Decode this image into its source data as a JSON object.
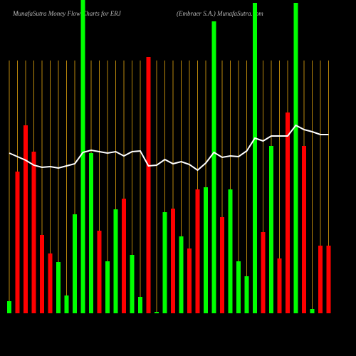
{
  "chart_data": {
    "type": "bar",
    "title": "MunafaSutra  Money Flow  Charts for ERJ",
    "subtitle": "(Embraer S.A.) MunafaSutra.com",
    "categories": [
      null,
      null,
      null,
      null,
      null,
      null,
      null,
      null,
      null,
      null,
      null,
      null,
      null,
      null,
      null,
      null,
      null,
      null,
      null,
      null,
      null,
      null,
      null,
      null,
      null,
      null,
      null,
      null,
      null,
      null,
      null,
      null,
      null,
      null,
      null,
      null,
      null,
      null,
      null,
      null
    ],
    "values": [
      17,
      199,
      264,
      227,
      110,
      84,
      72,
      25,
      139,
      440,
      225,
      116,
      73,
      146,
      161,
      82,
      23,
      360,
      2,
      142,
      147,
      108,
      91,
      174,
      177,
      410,
      135,
      174,
      73,
      52,
      436,
      114,
      235,
      77,
      282,
      436,
      235,
      6,
      95,
      95
    ],
    "colors": [
      "#00ff00",
      "#ff0000",
      "#ff0000",
      "#ff0000",
      "#ff0000",
      "#ff0000",
      "#00ff00",
      "#00ff00",
      "#00ff00",
      "#00ff00",
      "#00ff00",
      "#ff0000",
      "#00ff00",
      "#00ff00",
      "#ff0000",
      "#00ff00",
      "#00ff00",
      "#ff0000",
      "#00ff00",
      "#00ff00",
      "#ff0000",
      "#00ff00",
      "#ff0000",
      "#ff0000",
      "#00ff00",
      "#00ff00",
      "#ff0000",
      "#00ff00",
      "#00ff00",
      "#00ff00",
      "#00ff00",
      "#ff0000",
      "#00ff00",
      "#ff0000",
      "#ff0000",
      "#00ff00",
      "#ff0000",
      "#00ff00",
      "#ff0000",
      "#ff0000"
    ],
    "line_values": [
      225,
      220,
      215,
      208,
      205,
      206,
      204,
      207,
      210,
      226,
      229,
      227,
      225,
      227,
      221,
      227,
      228,
      207,
      208,
      216,
      210,
      213,
      209,
      201,
      211,
      226,
      219,
      221,
      220,
      228,
      246,
      242,
      249,
      249,
      249,
      264,
      258,
      255,
      251,
      251
    ],
    "line_color": "#ffffff",
    "grid_color": "#b8860b",
    "ylim": [
      0,
      440
    ]
  }
}
